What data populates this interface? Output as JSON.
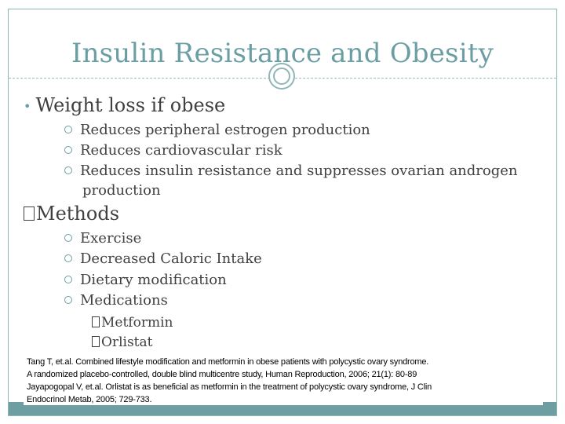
{
  "slide": {
    "title": "Insulin Resistance and Obesity",
    "bullet1": "Weight loss if obese",
    "bullet1_items": [
      "Reduces peripheral estrogen production",
      "Reduces cardiovascular risk",
      "Reduces insulin resistance and suppresses ovarian androgen"
    ],
    "bullet1_item3_cont": "production",
    "bullet2": "Methods",
    "bullet2_items": [
      "Exercise",
      "Decreased Caloric Intake",
      "Dietary modification",
      "Medications"
    ],
    "medications": [
      "Metformin",
      "Orlistat"
    ],
    "references": [
      "Tang T, et.al. Combined lifestyle modification and metformin in obese patients with polycystic ovary syndrome.",
      "A randomized placebo-controlled, double blind multicentre study, Human Reproduction, 2006; 21(1): 80-89",
      "Jayapogopal V, et.al. Orlistat is as beneficial as metformin in the treatment of polycystic ovary syndrome, J Clin",
      "Endocrinol Metab, 2005; 729-733."
    ]
  },
  "colors": {
    "accent": "#6a9ea3",
    "border": "#8fb5b7",
    "footer": "#6e9ea2",
    "text": "#404040"
  }
}
